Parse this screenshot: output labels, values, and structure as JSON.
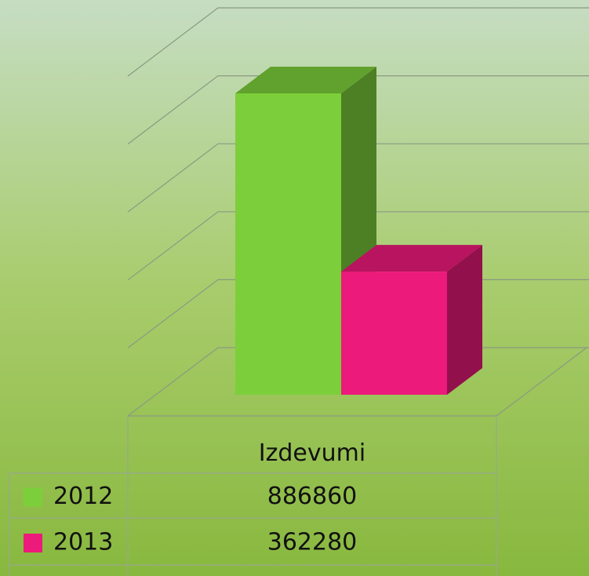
{
  "chart_data": {
    "type": "bar3d",
    "categories": [
      "Izdevumi"
    ],
    "series": [
      {
        "name": "2012",
        "color": "#7ccf3a",
        "values": [
          886860
        ]
      },
      {
        "name": "2013",
        "color": "#ec1a7a",
        "values": [
          362280
        ]
      }
    ],
    "ylim": [
      0,
      1000000
    ],
    "yticks": [
      0,
      200000,
      400000,
      600000,
      800000,
      1000000
    ],
    "grid": true,
    "data_table": true
  }
}
